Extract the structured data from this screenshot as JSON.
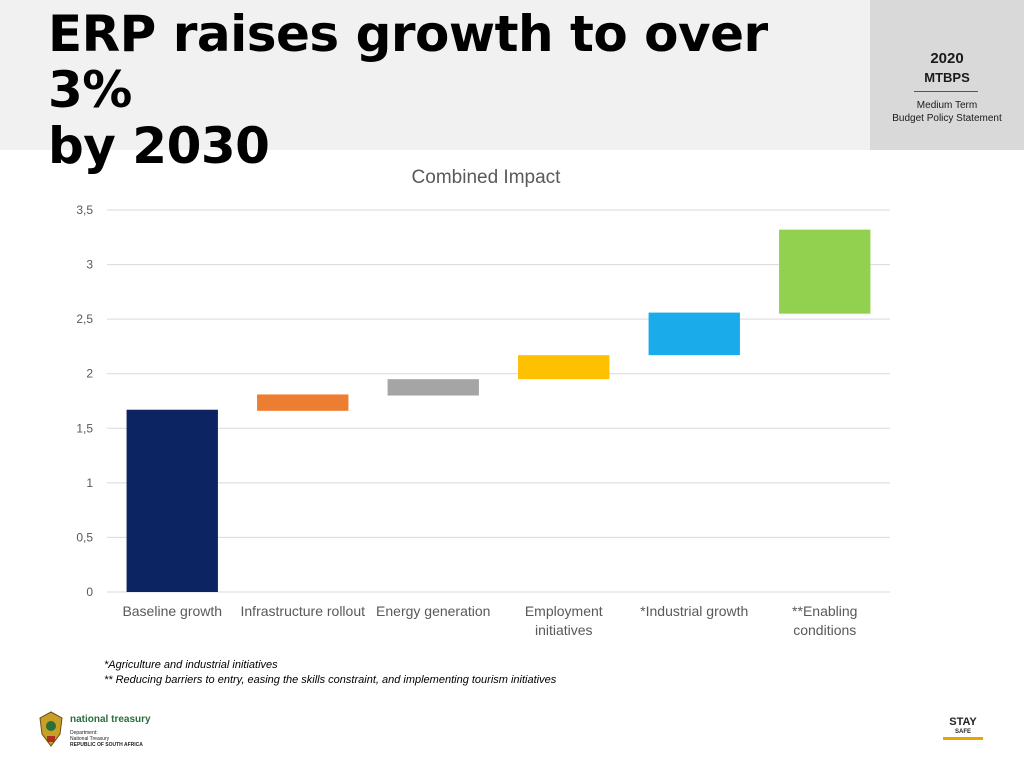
{
  "header": {
    "title_line1": "ERP raises growth to over 3%",
    "title_line2": "by 2030",
    "badge": {
      "year": "2020",
      "abbr": "MTBPS",
      "desc_line1": "Medium Term",
      "desc_line2": "Budget Policy Statement"
    }
  },
  "chart_data": {
    "type": "bar",
    "subtype": "waterfall",
    "title": "Combined Impact",
    "xlabel": "",
    "ylabel": "",
    "ylim": [
      0,
      3.5
    ],
    "grid": true,
    "y_ticks": [
      "0",
      "0,5",
      "1",
      "1,5",
      "2",
      "2,5",
      "3",
      "3,5"
    ],
    "y_tick_values": [
      0,
      0.5,
      1,
      1.5,
      2,
      2.5,
      3,
      3.5
    ],
    "categories": [
      [
        "Baseline growth"
      ],
      [
        "Infrastructure rollout"
      ],
      [
        "Energy generation"
      ],
      [
        "Employment",
        "initiatives"
      ],
      [
        "*Industrial growth"
      ],
      [
        "**Enabling",
        "conditions"
      ]
    ],
    "bars": [
      {
        "start": 0,
        "end": 1.67,
        "color": "#0c2461"
      },
      {
        "start": 1.66,
        "end": 1.81,
        "color": "#ed7d31"
      },
      {
        "start": 1.8,
        "end": 1.95,
        "color": "#a5a5a5"
      },
      {
        "start": 1.95,
        "end": 2.17,
        "color": "#ffc000"
      },
      {
        "start": 2.17,
        "end": 2.56,
        "color": "#1aabea"
      },
      {
        "start": 2.55,
        "end": 3.32,
        "color": "#92d050"
      }
    ]
  },
  "notes": {
    "note1": "*Agriculture and industrial initiatives",
    "note2": "** Reducing barriers to entry, easing the skills constraint, and implementing tourism initiatives"
  },
  "footer": {
    "brand": "national treasury",
    "dept_line1": "Department:",
    "dept_line2": "National Treasury",
    "dept_line3": "REPUBLIC OF SOUTH AFRICA",
    "stay_line1": "STAY",
    "stay_line2": "SAFE"
  },
  "colors": {
    "header_bg": "#f1f1f1",
    "badge_bg": "#d9d9d9",
    "grid": "#d9d9d9",
    "axis_text": "#595959"
  }
}
